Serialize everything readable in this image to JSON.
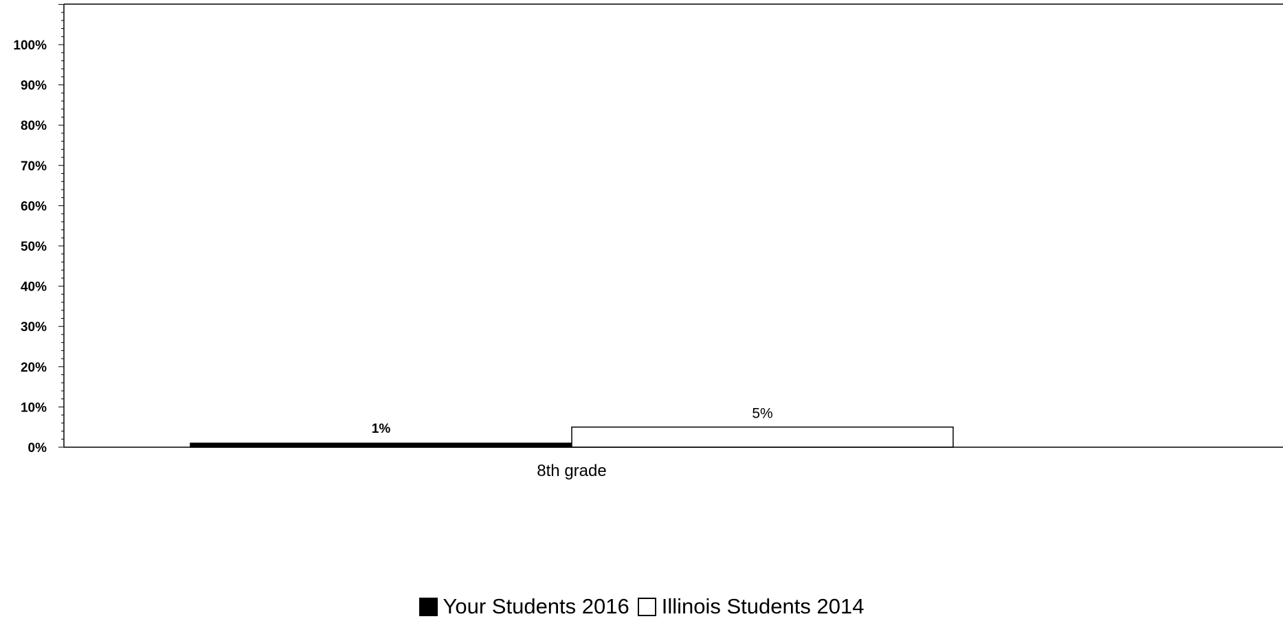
{
  "chart_data": {
    "type": "bar",
    "categories": [
      "8th grade"
    ],
    "series": [
      {
        "name": "Your Students 2016",
        "values": [
          1
        ],
        "value_labels": [
          "1%"
        ],
        "color": "#000000"
      },
      {
        "name": "Illinois Students 2014",
        "values": [
          5
        ],
        "value_labels": [
          "5%"
        ],
        "color": "#ffffff"
      }
    ],
    "yticks": [
      "0%",
      "10%",
      "20%",
      "30%",
      "40%",
      "50%",
      "60%",
      "70%",
      "80%",
      "90%",
      "100%"
    ],
    "ylim": [
      0,
      110
    ],
    "grid": false,
    "legend_position": "bottom"
  }
}
